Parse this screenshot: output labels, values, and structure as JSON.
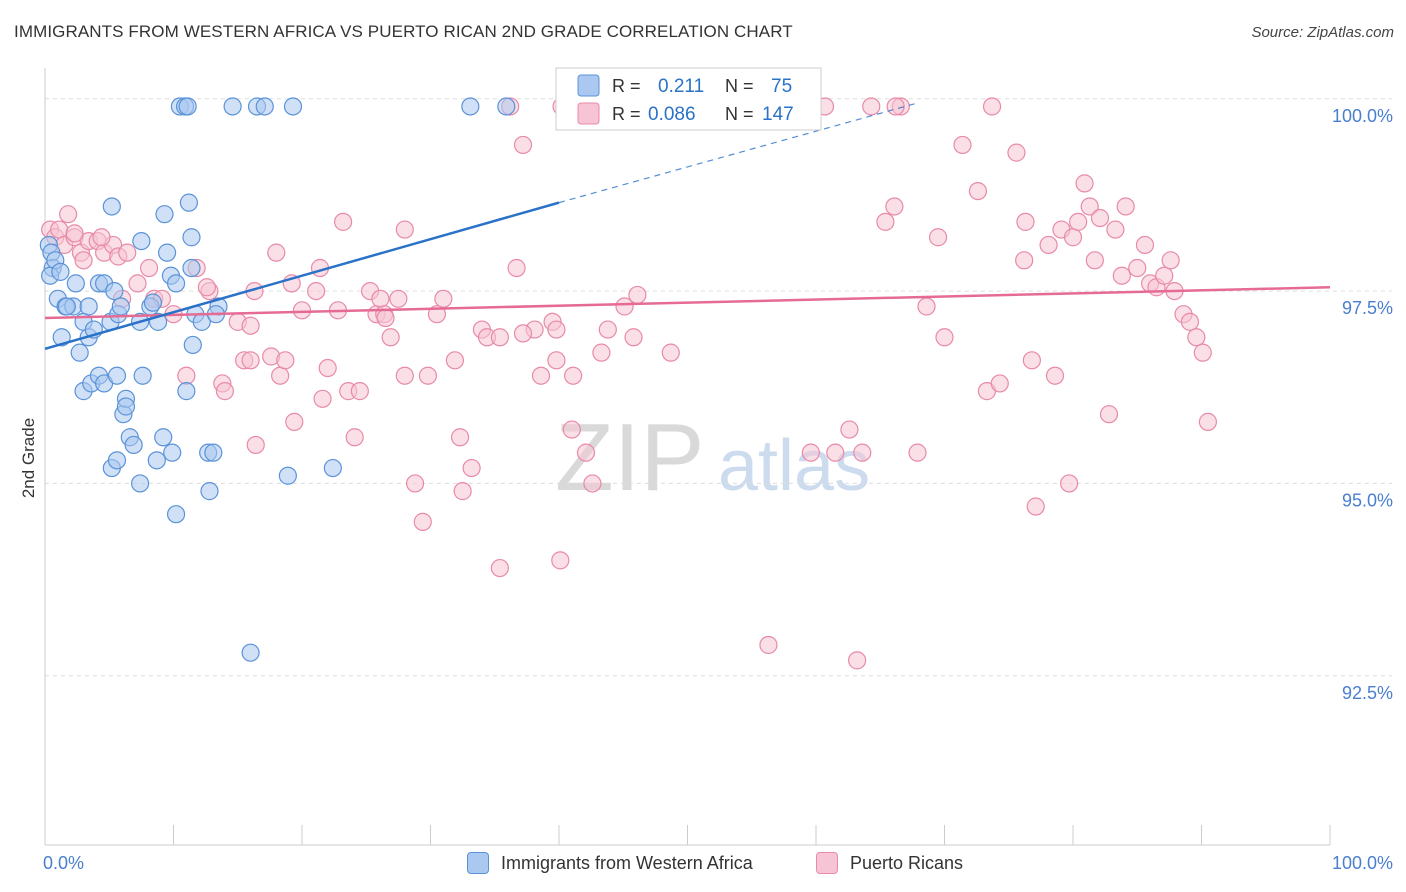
{
  "title": "IMMIGRANTS FROM WESTERN AFRICA VS PUERTO RICAN 2ND GRADE CORRELATION CHART",
  "source": "Source: ZipAtlas.com",
  "watermark": {
    "zip": "ZIP",
    "atlas": "atlas"
  },
  "colors": {
    "blue": "#5b93d8",
    "blue_fill": "#aac8f0",
    "blue_line": "#2a72c8",
    "pink": "#e88aa8",
    "pink_fill": "#f6c4d4",
    "pink_line": "#e56b95",
    "tick_label": "#4a7fcf",
    "grid": "#dddddd"
  },
  "legend": {
    "rows": [
      {
        "r_label": "R =",
        "r_value": "0.211",
        "n_label": "N =",
        "n_value": "75"
      },
      {
        "r_label": "R =",
        "r_value": "0.086",
        "n_label": "N =",
        "n_value": "147"
      }
    ]
  },
  "chart_data": {
    "type": "scatter",
    "title": "IMMIGRANTS FROM WESTERN AFRICA VS PUERTO RICAN 2ND GRADE CORRELATION CHART",
    "xlabel": "",
    "ylabel": "2nd Grade",
    "xlim": [
      0,
      100
    ],
    "ylim": [
      90.3,
      100.4
    ],
    "x_tick_labels": [
      "0.0%",
      "100.0%"
    ],
    "y_ticks": [
      92.5,
      95.0,
      97.5,
      100.0
    ],
    "y_tick_labels": [
      "92.5%",
      "95.0%",
      "97.5%",
      "100.0%"
    ],
    "series": [
      {
        "name": "Immigrants from Western Africa",
        "R": 0.211,
        "N": 75,
        "trend": {
          "x": [
            0,
            40
          ],
          "y": [
            96.75,
            98.65
          ],
          "dashed_to": [
            68,
            99.95
          ]
        },
        "points": [
          [
            0.3,
            98.1
          ],
          [
            0.5,
            98.0
          ],
          [
            0.6,
            97.8
          ],
          [
            0.8,
            97.9
          ],
          [
            0.4,
            97.7
          ],
          [
            1.2,
            97.75
          ],
          [
            1.0,
            97.4
          ],
          [
            1.3,
            96.9
          ],
          [
            1.6,
            97.3
          ],
          [
            2.4,
            97.6
          ],
          [
            2.2,
            97.3
          ],
          [
            3.0,
            97.1
          ],
          [
            3.4,
            97.3
          ],
          [
            3.4,
            96.9
          ],
          [
            3.8,
            97.0
          ],
          [
            2.7,
            96.7
          ],
          [
            3.0,
            96.2
          ],
          [
            3.6,
            96.3
          ],
          [
            4.2,
            96.4
          ],
          [
            4.6,
            96.3
          ],
          [
            4.2,
            97.6
          ],
          [
            4.6,
            97.6
          ],
          [
            5.1,
            97.1
          ],
          [
            5.4,
            97.5
          ],
          [
            5.6,
            96.4
          ],
          [
            5.7,
            97.2
          ],
          [
            5.9,
            97.3
          ],
          [
            6.1,
            95.9
          ],
          [
            6.3,
            96.1
          ],
          [
            6.3,
            96.0
          ],
          [
            6.6,
            95.6
          ],
          [
            6.9,
            95.5
          ],
          [
            7.6,
            96.4
          ],
          [
            7.4,
            97.1
          ],
          [
            8.2,
            97.3
          ],
          [
            8.4,
            97.35
          ],
          [
            8.8,
            97.1
          ],
          [
            9.2,
            95.6
          ],
          [
            9.9,
            95.4
          ],
          [
            8.7,
            95.3
          ],
          [
            9.5,
            98.0
          ],
          [
            9.8,
            97.7
          ],
          [
            7.5,
            98.15
          ],
          [
            10.2,
            97.6
          ],
          [
            11.4,
            97.8
          ],
          [
            11.7,
            97.2
          ],
          [
            11.5,
            96.8
          ],
          [
            12.2,
            97.1
          ],
          [
            12.7,
            95.4
          ],
          [
            13.1,
            95.4
          ],
          [
            11.0,
            96.2
          ],
          [
            11.2,
            98.65
          ],
          [
            11.4,
            98.2
          ],
          [
            10.2,
            94.6
          ],
          [
            12.8,
            94.9
          ],
          [
            16.0,
            92.8
          ],
          [
            9.3,
            98.5
          ],
          [
            5.2,
            98.6
          ],
          [
            5.2,
            95.2
          ],
          [
            5.6,
            95.3
          ],
          [
            7.4,
            95.0
          ],
          [
            18.9,
            95.1
          ],
          [
            22.4,
            95.2
          ],
          [
            13.5,
            97.3
          ],
          [
            13.3,
            97.2
          ],
          [
            10.5,
            99.9
          ],
          [
            10.9,
            99.9
          ],
          [
            11.1,
            99.9
          ],
          [
            14.6,
            99.9
          ],
          [
            16.5,
            99.9
          ],
          [
            17.1,
            99.9
          ],
          [
            19.3,
            99.9
          ],
          [
            33.1,
            99.9
          ],
          [
            35.9,
            99.9
          ],
          [
            1.7,
            97.3
          ]
        ]
      },
      {
        "name": "Puerto Ricans",
        "R": 0.086,
        "N": 147,
        "trend": {
          "x": [
            0,
            100
          ],
          "y": [
            97.15,
            97.55
          ]
        },
        "points": [
          [
            0.4,
            98.3
          ],
          [
            0.8,
            98.2
          ],
          [
            1.1,
            98.3
          ],
          [
            1.5,
            98.1
          ],
          [
            1.8,
            98.5
          ],
          [
            2.3,
            98.2
          ],
          [
            2.8,
            98.0
          ],
          [
            3.4,
            98.15
          ],
          [
            4.1,
            98.15
          ],
          [
            4.6,
            98.0
          ],
          [
            5.3,
            98.1
          ],
          [
            5.7,
            97.95
          ],
          [
            6.4,
            98.0
          ],
          [
            7.2,
            97.6
          ],
          [
            8.5,
            97.4
          ],
          [
            9.1,
            97.4
          ],
          [
            10.0,
            97.2
          ],
          [
            11.0,
            96.4
          ],
          [
            11.8,
            97.8
          ],
          [
            12.8,
            97.5
          ],
          [
            12.6,
            97.55
          ],
          [
            13.8,
            96.3
          ],
          [
            15.0,
            97.1
          ],
          [
            15.5,
            96.6
          ],
          [
            16.0,
            97.05
          ],
          [
            16.0,
            96.6
          ],
          [
            16.3,
            97.5
          ],
          [
            17.6,
            96.65
          ],
          [
            18.3,
            96.4
          ],
          [
            18.7,
            96.6
          ],
          [
            19.2,
            97.6
          ],
          [
            19.4,
            95.8
          ],
          [
            20.0,
            97.25
          ],
          [
            21.1,
            97.5
          ],
          [
            21.4,
            97.8
          ],
          [
            22.0,
            96.5
          ],
          [
            22.8,
            97.25
          ],
          [
            23.2,
            98.4
          ],
          [
            23.6,
            96.2
          ],
          [
            24.1,
            95.6
          ],
          [
            24.5,
            96.2
          ],
          [
            25.3,
            97.5
          ],
          [
            25.8,
            97.2
          ],
          [
            26.1,
            97.4
          ],
          [
            26.4,
            97.2
          ],
          [
            26.9,
            96.9
          ],
          [
            27.5,
            97.4
          ],
          [
            28.0,
            98.3
          ],
          [
            28.0,
            96.4
          ],
          [
            28.8,
            95.0
          ],
          [
            29.4,
            94.5
          ],
          [
            29.8,
            96.4
          ],
          [
            30.5,
            97.2
          ],
          [
            31.0,
            97.4
          ],
          [
            31.9,
            96.6
          ],
          [
            32.3,
            95.6
          ],
          [
            32.5,
            94.9
          ],
          [
            33.2,
            95.2
          ],
          [
            34.0,
            97.0
          ],
          [
            34.4,
            96.9
          ],
          [
            35.4,
            96.9
          ],
          [
            35.4,
            93.9
          ],
          [
            36.2,
            99.9
          ],
          [
            36.7,
            97.8
          ],
          [
            37.2,
            99.4
          ],
          [
            38.1,
            97.0
          ],
          [
            38.6,
            96.4
          ],
          [
            39.5,
            97.1
          ],
          [
            39.8,
            97.0
          ],
          [
            39.8,
            96.6
          ],
          [
            40.1,
            94.0
          ],
          [
            40.2,
            99.9
          ],
          [
            41.0,
            95.7
          ],
          [
            41.1,
            96.4
          ],
          [
            42.1,
            95.4
          ],
          [
            42.6,
            95.0
          ],
          [
            43.3,
            96.7
          ],
          [
            43.8,
            97.0
          ],
          [
            45.1,
            97.3
          ],
          [
            45.8,
            96.9
          ],
          [
            46.1,
            97.45
          ],
          [
            46.8,
            99.9
          ],
          [
            47.7,
            99.9
          ],
          [
            48.7,
            96.7
          ],
          [
            48.7,
            99.9
          ],
          [
            56.3,
            92.9
          ],
          [
            57.6,
            99.9
          ],
          [
            59.5,
            99.9
          ],
          [
            60.7,
            99.9
          ],
          [
            61.5,
            95.4
          ],
          [
            62.6,
            95.7
          ],
          [
            63.6,
            95.4
          ],
          [
            66.6,
            99.9
          ],
          [
            63.2,
            92.7
          ],
          [
            65.4,
            98.4
          ],
          [
            66.1,
            98.6
          ],
          [
            66.2,
            99.9
          ],
          [
            67.9,
            95.4
          ],
          [
            68.6,
            97.3
          ],
          [
            69.5,
            98.2
          ],
          [
            70.0,
            96.9
          ],
          [
            71.4,
            99.4
          ],
          [
            72.6,
            98.8
          ],
          [
            73.3,
            96.2
          ],
          [
            73.7,
            99.9
          ],
          [
            74.3,
            96.3
          ],
          [
            75.6,
            99.3
          ],
          [
            76.2,
            97.9
          ],
          [
            76.3,
            98.4
          ],
          [
            76.8,
            96.6
          ],
          [
            77.1,
            94.7
          ],
          [
            78.1,
            98.1
          ],
          [
            78.6,
            96.4
          ],
          [
            79.1,
            98.3
          ],
          [
            80.0,
            98.2
          ],
          [
            80.4,
            98.4
          ],
          [
            80.9,
            98.9
          ],
          [
            81.3,
            98.6
          ],
          [
            81.7,
            97.9
          ],
          [
            82.1,
            98.45
          ],
          [
            82.8,
            95.9
          ],
          [
            83.3,
            98.3
          ],
          [
            83.8,
            97.7
          ],
          [
            84.1,
            98.6
          ],
          [
            85.0,
            97.8
          ],
          [
            85.6,
            98.1
          ],
          [
            86.0,
            97.6
          ],
          [
            86.5,
            97.55
          ],
          [
            87.1,
            97.7
          ],
          [
            87.6,
            97.9
          ],
          [
            87.9,
            97.5
          ],
          [
            88.6,
            97.2
          ],
          [
            89.1,
            97.1
          ],
          [
            89.6,
            96.9
          ],
          [
            90.1,
            96.7
          ],
          [
            90.5,
            95.8
          ],
          [
            79.7,
            95.0
          ],
          [
            21.6,
            96.1
          ],
          [
            14.0,
            96.2
          ],
          [
            16.4,
            95.5
          ],
          [
            8.1,
            97.8
          ],
          [
            6.0,
            97.4
          ],
          [
            3.0,
            97.9
          ],
          [
            2.3,
            98.25
          ],
          [
            4.4,
            98.2
          ],
          [
            26.5,
            97.15
          ],
          [
            37.2,
            96.95
          ],
          [
            56.5,
            99.9
          ],
          [
            59.6,
            95.4
          ],
          [
            64.3,
            99.9
          ],
          [
            18.0,
            98.0
          ]
        ]
      }
    ]
  },
  "bottom_legend": {
    "items": [
      {
        "label": "Immigrants from Western Africa"
      },
      {
        "label": "Puerto Ricans"
      }
    ]
  }
}
